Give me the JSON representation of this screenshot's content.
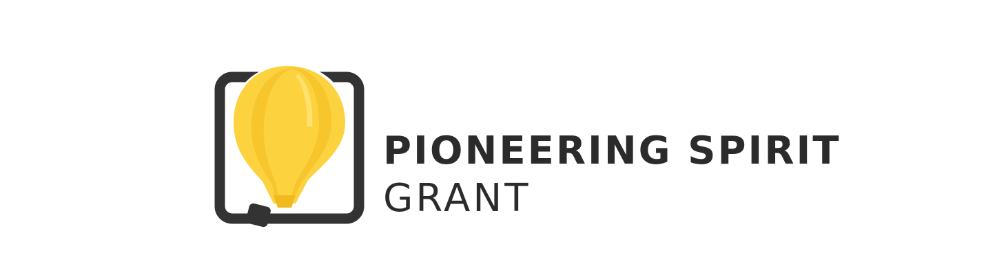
{
  "brand": {
    "title": "PIONEERING SPIRIT",
    "subtitle": "GRANT",
    "icon": "hot-air-balloon-lightbulb-icon",
    "colors": {
      "text": "#2b2b2b",
      "frame": "#333333",
      "balloon_primary": "#fdd23f",
      "balloon_shadow": "#f2b91e",
      "basket": "#333333"
    }
  }
}
